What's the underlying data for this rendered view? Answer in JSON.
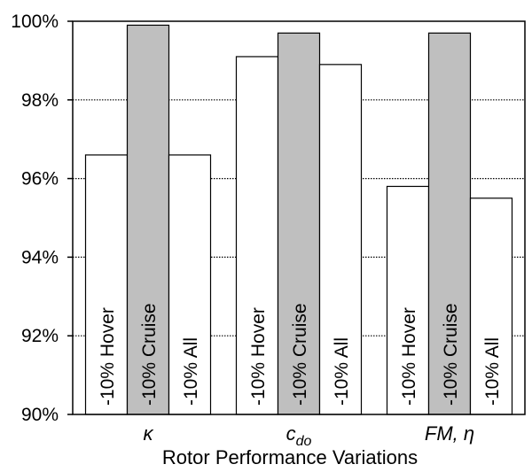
{
  "chart_data": {
    "type": "bar",
    "xlabel": "Rotor Performance Variations",
    "ylabel": "",
    "ylim": [
      90,
      100
    ],
    "yticks": [
      "90%",
      "92%",
      "94%",
      "96%",
      "98%",
      "100%"
    ],
    "ytick_values": [
      90,
      92,
      94,
      96,
      98,
      100
    ],
    "grid": "horizontal dotted",
    "categories": [
      {
        "label": "κ",
        "sub": ""
      },
      {
        "label": "c",
        "sub": "do"
      },
      {
        "label": "FM, η",
        "sub": ""
      }
    ],
    "series": [
      {
        "name": "-10% Hover",
        "values": [
          96.6,
          99.1,
          95.8
        ],
        "color": "#ffffff"
      },
      {
        "name": "-10% Cruise",
        "values": [
          99.9,
          99.7,
          99.7
        ],
        "color": "#bfbfbf"
      },
      {
        "name": "-10% All",
        "values": [
          96.6,
          98.9,
          95.5
        ],
        "color": "#ffffff"
      }
    ]
  }
}
